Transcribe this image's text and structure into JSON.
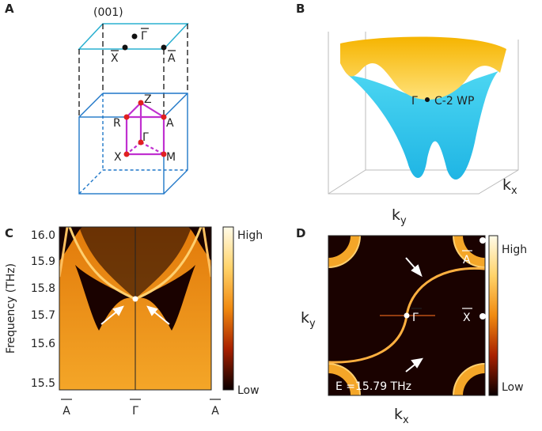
{
  "panels": {
    "a": {
      "label": "A",
      "surface": "(001)",
      "gamma_bar": "Γ",
      "x_bar": "X",
      "a_bar": "A",
      "z": "Z",
      "r": "R",
      "a": "A",
      "gamma": "Γ",
      "x": "X",
      "m": "M"
    },
    "b": {
      "label": "B",
      "gamma": "Γ",
      "point": "C-2 WP",
      "ky": {
        "main": "k",
        "sub": "y"
      },
      "kx": {
        "main": "k",
        "sub": "x"
      }
    },
    "c": {
      "label": "C",
      "y_axis_label": "Frequency (THz)",
      "y_ticks": [
        "16.0",
        "15.9",
        "15.8",
        "15.7",
        "15.6",
        "15.5"
      ],
      "x_ticks": [
        "A",
        "Γ",
        "A"
      ],
      "colorbar": {
        "high": "High",
        "low": "Low"
      }
    },
    "d": {
      "label": "D",
      "ky": {
        "main": "k",
        "sub": "y"
      },
      "kx": {
        "main": "k",
        "sub": "x"
      },
      "a_bar": "A",
      "x_bar": "X",
      "gamma_bar": "Γ",
      "energy": "E =15.79 THz",
      "colorbar": {
        "high": "High",
        "low": "Low"
      }
    }
  }
}
